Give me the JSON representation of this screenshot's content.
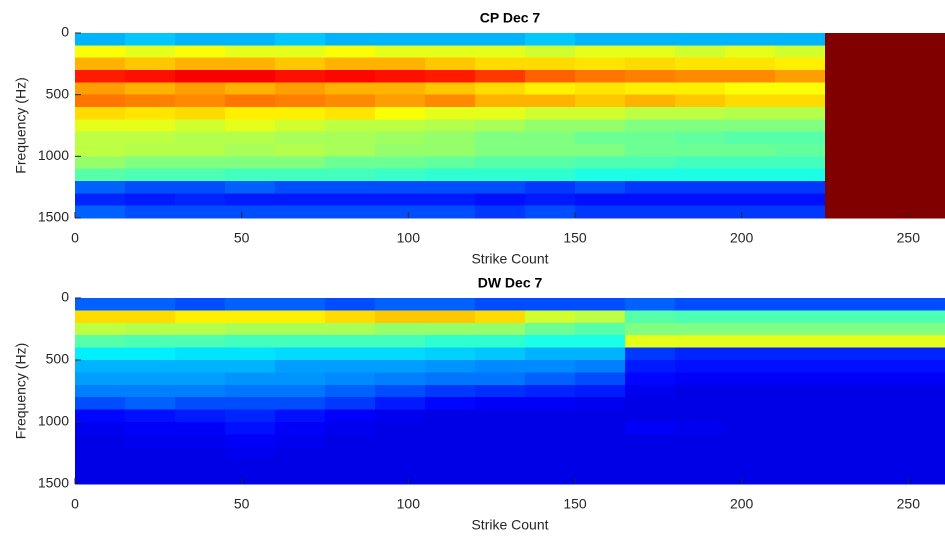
{
  "chart_data": [
    {
      "type": "heatmap",
      "title": "CP Dec 7",
      "x_label": "Strike Count",
      "y_label": "Frequency (Hz)",
      "colormap": "jet",
      "zlim": [
        0,
        1
      ],
      "y_direction": "reverse",
      "xlim": [
        0,
        261
      ],
      "xticks": [
        0,
        50,
        100,
        150,
        200,
        250
      ],
      "ylim": [
        0,
        1500
      ],
      "yticks": [
        0,
        500,
        1000,
        1500
      ],
      "xbins": [
        0,
        15,
        30,
        45,
        60,
        75,
        90,
        105,
        120,
        135,
        150,
        165,
        180,
        195,
        210,
        225,
        261
      ],
      "ybins": [
        0,
        100,
        200,
        300,
        400,
        500,
        600,
        700,
        800,
        900,
        1000,
        1100,
        1200,
        1300,
        1400,
        1500
      ],
      "z": [
        [
          0.3,
          0.32,
          0.3,
          0.3,
          0.32,
          0.3,
          0.3,
          0.3,
          0.3,
          0.32,
          0.3,
          0.3,
          0.3,
          0.3,
          0.3,
          1
        ],
        [
          0.62,
          0.6,
          0.62,
          0.6,
          0.6,
          0.62,
          0.6,
          0.6,
          0.6,
          0.58,
          0.6,
          0.6,
          0.58,
          0.6,
          0.58,
          1
        ],
        [
          0.7,
          0.68,
          0.7,
          0.7,
          0.68,
          0.7,
          0.7,
          0.68,
          0.66,
          0.66,
          0.65,
          0.66,
          0.65,
          0.65,
          0.64,
          1
        ],
        [
          0.85,
          0.86,
          0.88,
          0.88,
          0.86,
          0.87,
          0.86,
          0.85,
          0.82,
          0.78,
          0.76,
          0.75,
          0.74,
          0.74,
          0.72,
          1
        ],
        [
          0.72,
          0.7,
          0.72,
          0.7,
          0.72,
          0.7,
          0.7,
          0.68,
          0.66,
          0.64,
          0.65,
          0.64,
          0.64,
          0.62,
          0.62,
          1
        ],
        [
          0.76,
          0.75,
          0.74,
          0.76,
          0.75,
          0.74,
          0.72,
          0.74,
          0.7,
          0.7,
          0.68,
          0.7,
          0.68,
          0.66,
          0.66,
          1
        ],
        [
          0.66,
          0.65,
          0.66,
          0.64,
          0.64,
          0.65,
          0.62,
          0.6,
          0.6,
          0.58,
          0.58,
          0.56,
          0.56,
          0.55,
          0.55,
          1
        ],
        [
          0.6,
          0.6,
          0.58,
          0.6,
          0.58,
          0.56,
          0.56,
          0.55,
          0.54,
          0.52,
          0.52,
          0.5,
          0.5,
          0.5,
          0.5,
          1
        ],
        [
          0.56,
          0.56,
          0.55,
          0.55,
          0.54,
          0.54,
          0.53,
          0.52,
          0.5,
          0.5,
          0.48,
          0.48,
          0.47,
          0.46,
          0.46,
          1
        ],
        [
          0.56,
          0.55,
          0.55,
          0.54,
          0.55,
          0.54,
          0.52,
          0.52,
          0.5,
          0.5,
          0.5,
          0.48,
          0.48,
          0.48,
          0.47,
          1
        ],
        [
          0.52,
          0.5,
          0.5,
          0.5,
          0.5,
          0.48,
          0.48,
          0.47,
          0.46,
          0.46,
          0.45,
          0.45,
          0.44,
          0.44,
          0.44,
          1
        ],
        [
          0.46,
          0.45,
          0.45,
          0.44,
          0.44,
          0.44,
          0.43,
          0.42,
          0.42,
          0.42,
          0.4,
          0.4,
          0.4,
          0.4,
          0.4,
          1
        ],
        [
          0.22,
          0.2,
          0.2,
          0.22,
          0.2,
          0.2,
          0.2,
          0.2,
          0.2,
          0.18,
          0.2,
          0.18,
          0.18,
          0.18,
          0.18,
          1
        ],
        [
          0.16,
          0.15,
          0.16,
          0.15,
          0.15,
          0.15,
          0.15,
          0.15,
          0.14,
          0.15,
          0.14,
          0.14,
          0.14,
          0.14,
          0.14,
          1
        ],
        [
          0.22,
          0.2,
          0.2,
          0.2,
          0.2,
          0.2,
          0.2,
          0.2,
          0.18,
          0.2,
          0.18,
          0.18,
          0.18,
          0.18,
          0.18,
          1
        ]
      ]
    },
    {
      "type": "heatmap",
      "title": "DW Dec 7",
      "x_label": "Strike Count",
      "y_label": "Frequency (Hz)",
      "colormap": "jet",
      "zlim": [
        0,
        1
      ],
      "y_direction": "reverse",
      "xlim": [
        0,
        261
      ],
      "xticks": [
        0,
        50,
        100,
        150,
        200,
        250
      ],
      "ylim": [
        0,
        1500
      ],
      "yticks": [
        0,
        500,
        1000,
        1500
      ],
      "xbins": [
        0,
        15,
        30,
        45,
        60,
        75,
        90,
        105,
        120,
        135,
        150,
        165,
        180,
        195,
        210,
        225,
        261
      ],
      "ybins": [
        0,
        100,
        200,
        300,
        400,
        500,
        600,
        700,
        800,
        900,
        1000,
        1100,
        1200,
        1300,
        1400,
        1500
      ],
      "z": [
        [
          0.22,
          0.22,
          0.2,
          0.22,
          0.22,
          0.2,
          0.22,
          0.22,
          0.2,
          0.2,
          0.2,
          0.22,
          0.2,
          0.2,
          0.2,
          0.2
        ],
        [
          0.66,
          0.66,
          0.64,
          0.64,
          0.64,
          0.66,
          0.68,
          0.68,
          0.66,
          0.58,
          0.56,
          0.46,
          0.45,
          0.45,
          0.45,
          0.45
        ],
        [
          0.56,
          0.55,
          0.55,
          0.54,
          0.54,
          0.54,
          0.52,
          0.52,
          0.52,
          0.48,
          0.46,
          0.5,
          0.5,
          0.5,
          0.5,
          0.5
        ],
        [
          0.46,
          0.45,
          0.45,
          0.44,
          0.44,
          0.44,
          0.44,
          0.42,
          0.42,
          0.4,
          0.4,
          0.6,
          0.6,
          0.6,
          0.6,
          0.6
        ],
        [
          0.36,
          0.36,
          0.35,
          0.35,
          0.34,
          0.34,
          0.34,
          0.33,
          0.32,
          0.3,
          0.3,
          0.18,
          0.16,
          0.16,
          0.16,
          0.16
        ],
        [
          0.3,
          0.3,
          0.3,
          0.3,
          0.28,
          0.28,
          0.28,
          0.27,
          0.26,
          0.26,
          0.25,
          0.15,
          0.14,
          0.14,
          0.14,
          0.14
        ],
        [
          0.28,
          0.28,
          0.28,
          0.27,
          0.27,
          0.26,
          0.25,
          0.24,
          0.24,
          0.22,
          0.2,
          0.13,
          0.12,
          0.12,
          0.12,
          0.12
        ],
        [
          0.25,
          0.25,
          0.25,
          0.24,
          0.24,
          0.22,
          0.2,
          0.18,
          0.17,
          0.16,
          0.15,
          0.11,
          0.1,
          0.1,
          0.1,
          0.1
        ],
        [
          0.2,
          0.22,
          0.2,
          0.2,
          0.2,
          0.18,
          0.15,
          0.13,
          0.12,
          0.12,
          0.11,
          0.1,
          0.1,
          0.1,
          0.1,
          0.1
        ],
        [
          0.13,
          0.14,
          0.15,
          0.16,
          0.14,
          0.12,
          0.11,
          0.1,
          0.1,
          0.1,
          0.1,
          0.1,
          0.1,
          0.1,
          0.1,
          0.1
        ],
        [
          0.11,
          0.12,
          0.12,
          0.14,
          0.12,
          0.11,
          0.1,
          0.1,
          0.1,
          0.1,
          0.1,
          0.12,
          0.11,
          0.1,
          0.1,
          0.1
        ],
        [
          0.1,
          0.11,
          0.11,
          0.12,
          0.11,
          0.1,
          0.1,
          0.1,
          0.1,
          0.1,
          0.1,
          0.1,
          0.1,
          0.1,
          0.1,
          0.1
        ],
        [
          0.1,
          0.1,
          0.1,
          0.11,
          0.1,
          0.1,
          0.1,
          0.1,
          0.1,
          0.1,
          0.1,
          0.1,
          0.1,
          0.1,
          0.1,
          0.1
        ],
        [
          0.1,
          0.1,
          0.1,
          0.1,
          0.1,
          0.1,
          0.1,
          0.1,
          0.1,
          0.1,
          0.1,
          0.1,
          0.1,
          0.1,
          0.1,
          0.1
        ],
        [
          0.1,
          0.1,
          0.1,
          0.1,
          0.1,
          0.1,
          0.1,
          0.1,
          0.1,
          0.1,
          0.1,
          0.1,
          0.1,
          0.1,
          0.1,
          0.1
        ]
      ]
    }
  ]
}
